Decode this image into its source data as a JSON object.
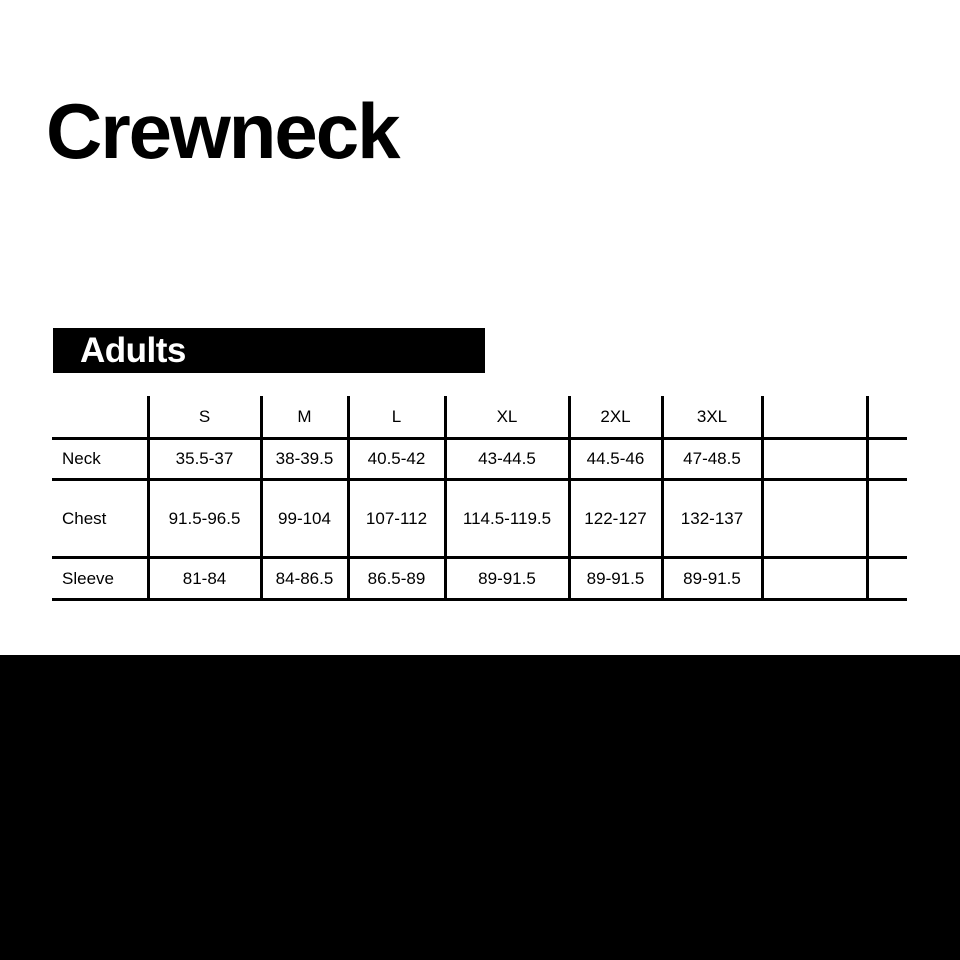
{
  "title": "Crewneck",
  "section": "Adults",
  "table": {
    "headers": [
      "",
      "S",
      "M",
      "L",
      "XL",
      "2XL",
      "3XL",
      "",
      ""
    ],
    "rows": [
      {
        "label": "Neck",
        "values": [
          "35.5-37",
          "38-39.5",
          "40.5-42",
          "43-44.5",
          "44.5-46",
          "47-48.5",
          "",
          ""
        ]
      },
      {
        "label": "Chest",
        "values": [
          "91.5-96.5",
          "99-104",
          "107-112",
          "114.5-119.5",
          "122-127",
          "132-137",
          "",
          ""
        ]
      },
      {
        "label": "Sleeve",
        "values": [
          "81-84",
          "84-86.5",
          "86.5-89",
          "89-91.5",
          "89-91.5",
          "89-91.5",
          "",
          ""
        ]
      }
    ]
  }
}
